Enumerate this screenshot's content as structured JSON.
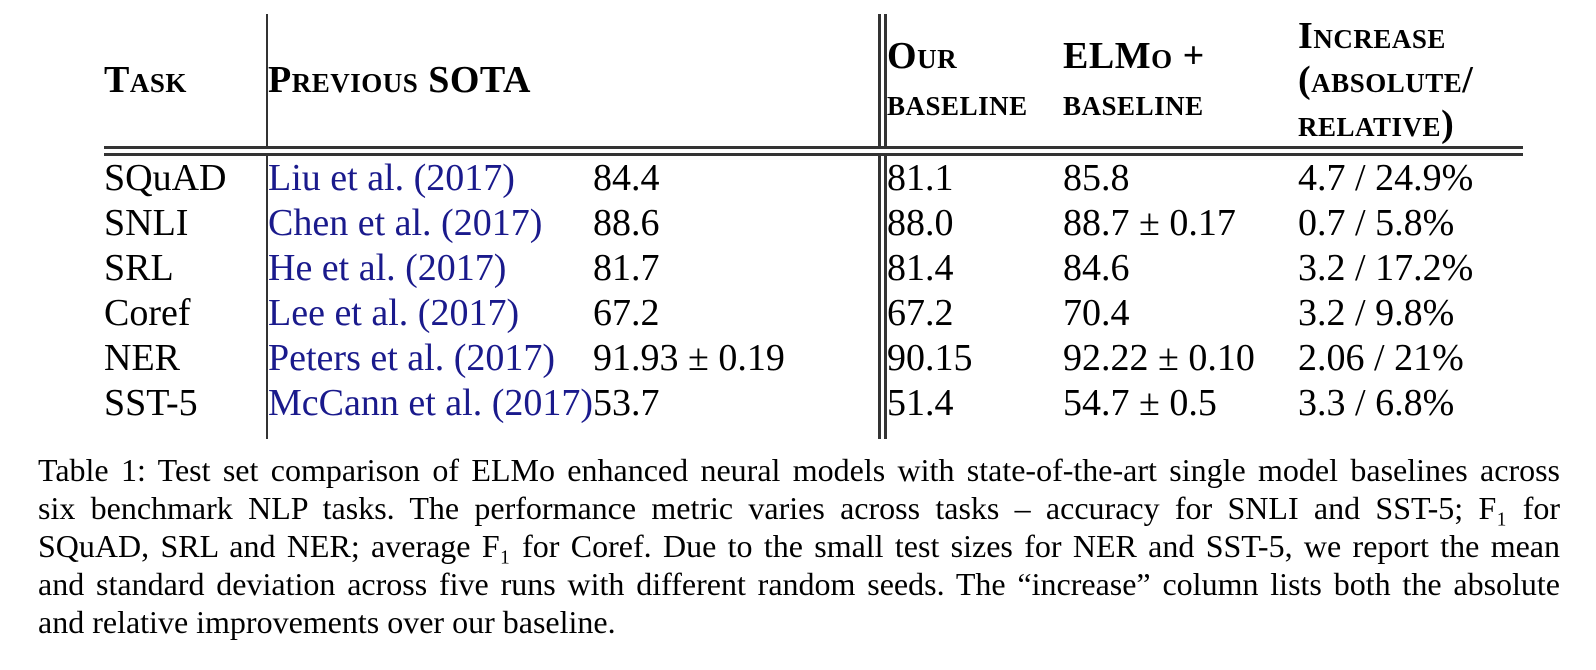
{
  "table": {
    "header": {
      "task": "Task",
      "previous_sota": "Previous SOTA",
      "our_baseline": [
        "Our",
        "baseline"
      ],
      "elmo_baseline": [
        "ELMo +",
        "baseline"
      ],
      "increase": [
        "Increase",
        "(absolute/",
        "relative)"
      ]
    },
    "rows": [
      {
        "task": "SQuAD",
        "citation": "Liu et al. (2017)",
        "sota": "84.4",
        "our_baseline": "81.1",
        "elmo_baseline": "85.8",
        "increase": "4.7 / 24.9%"
      },
      {
        "task": "SNLI",
        "citation": "Chen et al. (2017)",
        "sota": "88.6",
        "our_baseline": "88.0",
        "elmo_baseline": "88.7 ± 0.17",
        "increase": "0.7 / 5.8%"
      },
      {
        "task": "SRL",
        "citation": "He et al. (2017)",
        "sota": "81.7",
        "our_baseline": "81.4",
        "elmo_baseline": "84.6",
        "increase": "3.2 / 17.2%"
      },
      {
        "task": "Coref",
        "citation": "Lee et al. (2017)",
        "sota": "67.2",
        "our_baseline": "67.2",
        "elmo_baseline": "70.4",
        "increase": "3.2 / 9.8%"
      },
      {
        "task": "NER",
        "citation": "Peters et al. (2017)",
        "sota": "91.93 ± 0.19",
        "our_baseline": "90.15",
        "elmo_baseline": "92.22 ± 0.10",
        "increase": "2.06 / 21%"
      },
      {
        "task": "SST-5",
        "citation": "McCann et al. (2017)",
        "sota": "53.7",
        "our_baseline": "51.4",
        "elmo_baseline": "54.7 ± 0.5",
        "increase": "3.3 / 6.8%"
      }
    ]
  },
  "caption": {
    "lines": [
      "Table 1: Test set comparison of ELMo enhanced neural models with state-of-the-art single model baselines across",
      "six benchmark NLP tasks. The performance metric varies across tasks – accuracy for SNLI and SST-5; F₁ for",
      "SQuAD, SRL and NER; average F₁ for Coref. Due to the small test sizes for NER and SST-5, we report the mean",
      "and standard deviation across five runs with different random seeds. The “increase” column lists both the absolute",
      "and relative improvements over our baseline."
    ]
  },
  "colors": {
    "text": "#000000",
    "citation_link": "#1a1a8c",
    "rule": "#333333"
  }
}
